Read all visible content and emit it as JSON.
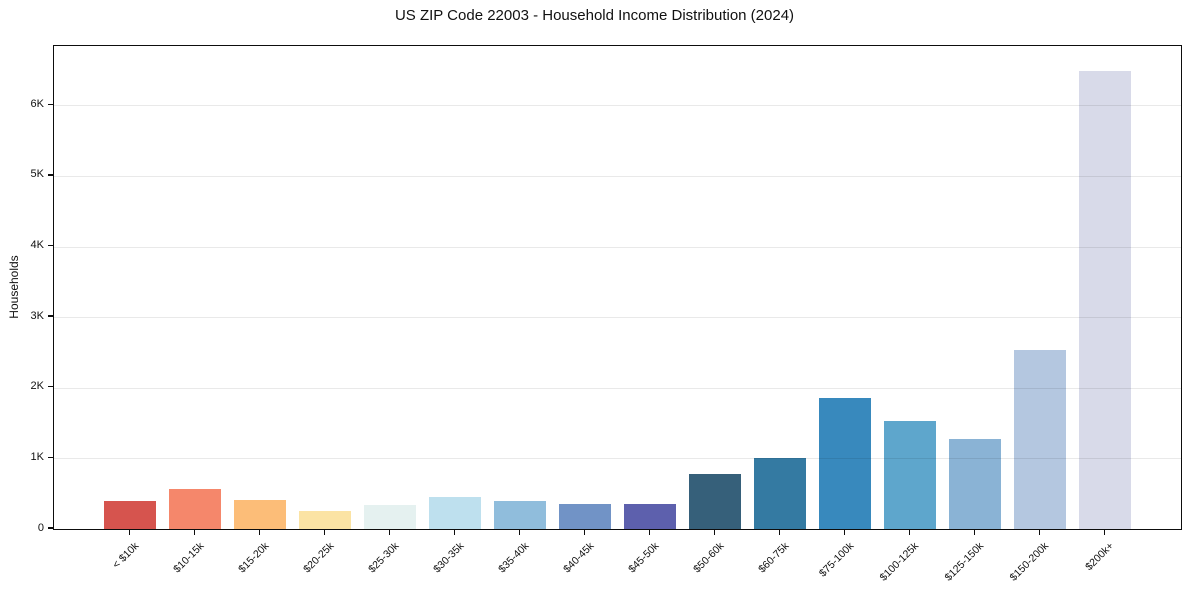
{
  "chart_data": {
    "type": "bar",
    "title": "US ZIP Code 22003 - Household Income Distribution (2024)",
    "ylabel": "Households",
    "xlabel": "",
    "categories": [
      "< $10k",
      "$10-15k",
      "$15-20k",
      "$20-25k",
      "$25-30k",
      "$30-35k",
      "$35-40k",
      "$40-45k",
      "$45-50k",
      "$50-60k",
      "$60-75k",
      "$75-100k",
      "$100-125k",
      "$125-150k",
      "$150-200k",
      "$200k+"
    ],
    "values": [
      400,
      570,
      405,
      250,
      335,
      450,
      390,
      360,
      350,
      780,
      1010,
      1860,
      1530,
      1280,
      2530,
      6480
    ],
    "bar_colors": [
      "#d6544e",
      "#f5876b",
      "#fcbd78",
      "#fbe3a4",
      "#e5f1f0",
      "#bee0ee",
      "#90bddc",
      "#7193c6",
      "#5d60ad",
      "#36607a",
      "#347aa2",
      "#3889bd",
      "#5ea6cc",
      "#8ab3d5",
      "#b4c7e0",
      "#d8dae9"
    ],
    "ylim": [
      0,
      6840
    ],
    "yticks": [
      {
        "value": 0,
        "label": "0"
      },
      {
        "value": 1000,
        "label": "1K"
      },
      {
        "value": 2000,
        "label": "2K"
      },
      {
        "value": 3000,
        "label": "3K"
      },
      {
        "value": 4000,
        "label": "4K"
      },
      {
        "value": 5000,
        "label": "5K"
      },
      {
        "value": 6000,
        "label": "6K"
      }
    ],
    "grid": "horizontal",
    "legend": "none",
    "background_color": "#ffffff",
    "axis_color": "#0d0d0d",
    "gridline_color": "#ebebeb",
    "text_color": "#111111"
  }
}
